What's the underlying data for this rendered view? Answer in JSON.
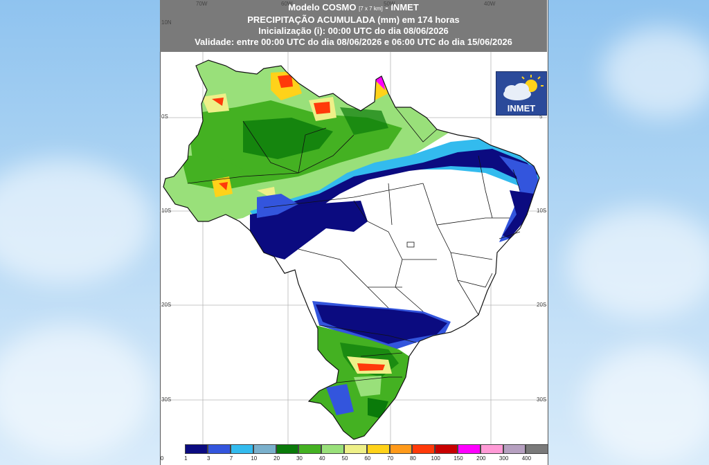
{
  "header": {
    "line1_prefix": "Modelo COSMO",
    "line1_small": "[7 x 7 km]",
    "line1_suffix": "- INMET",
    "line2": "PRECIPITAÇÃO ACUMULADA (mm) em 174 horas",
    "line3": "Inicialização (i): 00:00 UTC do dia 08/06/2026",
    "line4": "Validade: entre 00:00 UTC do dia 08/06/2026 e 06:00 UTC do dia 15/06/2026"
  },
  "logo": {
    "text": "INMET"
  },
  "axes": {
    "lon_top": [
      "70W",
      "60W",
      "50W",
      "40W"
    ],
    "lat_left": [
      "10N",
      "0S",
      "10S",
      "20S",
      "30S"
    ],
    "lat_right": [
      "5",
      "10S",
      "20S",
      "30S"
    ]
  },
  "scale": {
    "labels": [
      "0",
      "1",
      "3",
      "7",
      "10",
      "20",
      "30",
      "40",
      "50",
      "60",
      "70",
      "80",
      "100",
      "150",
      "200",
      "300",
      "400"
    ],
    "colors": [
      "#ffffff",
      "#0b0b80",
      "#3355dd",
      "#33bbee",
      "#7ab0cc",
      "#0a7a0a",
      "#44b122",
      "#99e07a",
      "#eef088",
      "#ffd21a",
      "#ff9a1a",
      "#ff3a0a",
      "#c80000",
      "#ff00ff",
      "#ff9ad6",
      "#b6a0c0",
      "#7a7a7a"
    ]
  }
}
